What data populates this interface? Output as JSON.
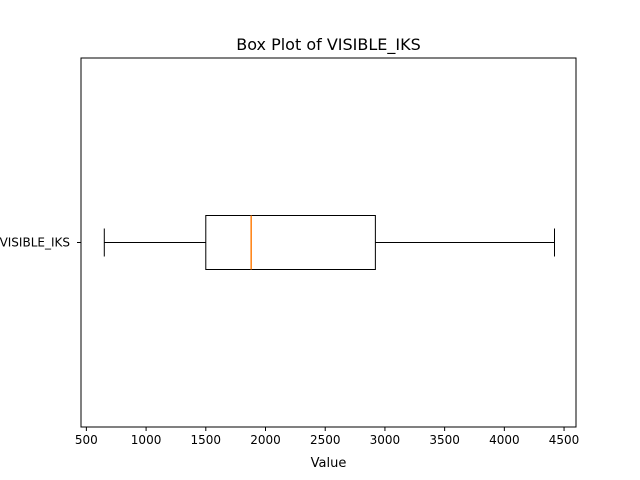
{
  "chart_data": {
    "type": "box",
    "title": "Box Plot of VISIBLE_IKS",
    "xlabel": "Value",
    "ylabel": "",
    "orientation": "horizontal",
    "xlim": [
      455,
      4600
    ],
    "x_ticks": [
      500,
      1000,
      1500,
      2000,
      2500,
      3000,
      3500,
      4000,
      4500
    ],
    "grid": false,
    "categories": [
      "VISIBLE_IKS"
    ],
    "series": [
      {
        "name": "VISIBLE_IKS",
        "whisker_low": 650,
        "q1": 1500,
        "median": 1880,
        "q3": 2920,
        "whisker_high": 4420
      }
    ],
    "colors": {
      "box": "#000000",
      "median": "#ff7f0e",
      "axes": "#000000"
    }
  }
}
